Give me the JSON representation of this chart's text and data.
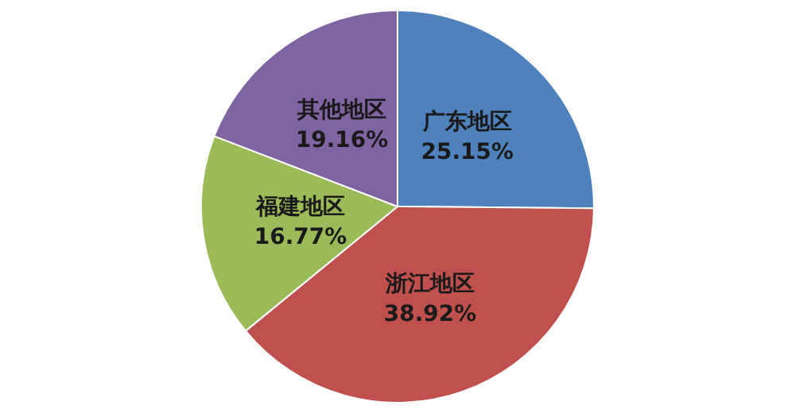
{
  "chart_data": {
    "type": "pie",
    "categories": [
      "广东地区",
      "浙江地区",
      "福建地区",
      "其他地区"
    ],
    "values": [
      25.15,
      38.92,
      16.77,
      19.16
    ],
    "colors": [
      "#4f81bd",
      "#c0504d",
      "#9bbb59",
      "#8064a2"
    ],
    "value_labels": [
      "25.15%",
      "38.92%",
      "16.77%",
      "19.16%"
    ],
    "legend": false
  }
}
